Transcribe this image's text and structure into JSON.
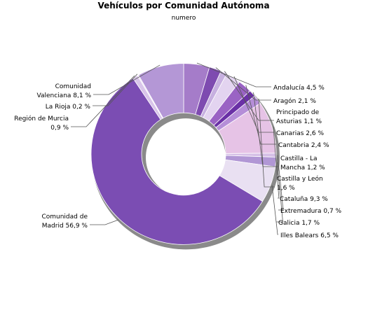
{
  "chart_data": {
    "type": "pie",
    "title": "Vehículos por Comunidad Autónoma",
    "subtitle": "numero",
    "slices": [
      {
        "name": "Andalucía",
        "value": 4.5,
        "label": [
          "Andalucía 4,5 %"
        ],
        "color": "#a57cc9"
      },
      {
        "name": "Aragón",
        "value": 2.1,
        "label": [
          "Aragón 2,1 %"
        ],
        "color": "#7e4bb0"
      },
      {
        "name": "Principado de Asturias",
        "value": 1.1,
        "label": [
          "Principado de",
          "Asturias 1,1 %"
        ],
        "color": "#c7b0e0"
      },
      {
        "name": "Canarias",
        "value": 2.6,
        "label": [
          "Canarias 2,6 %"
        ],
        "color": "#e3d4f0"
      },
      {
        "name": "Cantabria",
        "value": 2.4,
        "label": [
          "Cantabria 2,4 %"
        ],
        "color": "#9a63c4"
      },
      {
        "name": "Castilla - La Mancha",
        "value": 1.2,
        "label": [
          "Castilla - La",
          "Mancha 1,2 %"
        ],
        "color": "#6a30a6"
      },
      {
        "name": "Castilla y León",
        "value": 1.6,
        "label": [
          "Castilla y León",
          "1,6 %"
        ],
        "color": "#b58ed8"
      },
      {
        "name": "Cataluña",
        "value": 9.3,
        "label": [
          "Cataluña 9,3 %"
        ],
        "color": "#e6c3e6"
      },
      {
        "name": "Extremadura",
        "value": 0.7,
        "label": [
          "Extremadura 0,7 %"
        ],
        "color": "#d5bfe6"
      },
      {
        "name": "Galicia",
        "value": 1.7,
        "label": [
          "Galicia 1,7 %"
        ],
        "color": "#b197d5"
      },
      {
        "name": "Illes Balears",
        "value": 6.5,
        "label": [
          "Illes Balears 6,5 %"
        ],
        "color": "#e9e0f2"
      },
      {
        "name": "Comunidad de Madrid",
        "value": 56.9,
        "label": [
          "Comunidad de",
          "Madrid 56,9 %"
        ],
        "color": "#7b4db3"
      },
      {
        "name": "Región de Murcia",
        "value": 0.9,
        "label": [
          "Región de Murcia",
          "0,9 %"
        ],
        "color": "#d9c5ea"
      },
      {
        "name": "La Rioja",
        "value": 0.2,
        "label": [
          "La Rioja 0,2 %"
        ],
        "color": "#e8dcf3"
      },
      {
        "name": "Comunidad Valenciana",
        "value": 8.1,
        "label": [
          "Comunidad",
          "Valenciana 8,1 %"
        ],
        "color": "#b497d6"
      }
    ]
  }
}
